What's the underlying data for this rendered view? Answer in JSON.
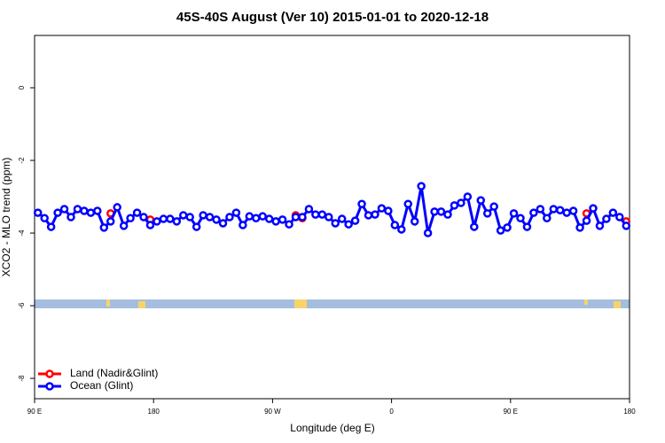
{
  "chart_data": {
    "type": "line",
    "title": "45S-40S August (Ver 10)   2015-01-01 to 2020-12-18",
    "x_label": "Longitude (deg E)",
    "y_label": "XCO2 - MLO trend (ppm)",
    "xlim": [
      90,
      540
    ],
    "xticks": [
      {
        "value": 90,
        "label": "90 E"
      },
      180,
      {
        "value": 270,
        "label": "90 W"
      },
      {
        "value": 360,
        "label": "0"
      },
      {
        "value": 450,
        "label": "90 E"
      },
      {
        "value": 540,
        "label": "180"
      }
    ],
    "ylim": [
      -8.56,
      1.44
    ],
    "yticks": [
      0,
      -2,
      -4,
      -6,
      -8
    ],
    "legend": "bottom-left",
    "series": [
      {
        "name": "Land (Nadir&Glint)",
        "color": "#ff0000",
        "x": [
          147.5,
          177.5,
          287.5,
          292.5,
          507.5,
          537.5
        ],
        "values": [
          -3.46,
          -3.63,
          -3.51,
          -3.59,
          -3.46,
          -3.68
        ]
      },
      {
        "name": "Ocean (Glint)",
        "color": "#0000ff",
        "x": [
          92.5,
          97.5,
          102.5,
          107.5,
          112.5,
          117.5,
          122.5,
          127.5,
          132.5,
          137.5,
          142.5,
          147.5,
          152.5,
          157.5,
          162.5,
          167.5,
          172.5,
          177.5,
          182.5,
          187.5,
          192.5,
          197.5,
          202.5,
          207.5,
          212.5,
          217.5,
          222.5,
          227.5,
          232.5,
          237.5,
          242.5,
          247.5,
          252.5,
          257.5,
          262.5,
          267.5,
          272.5,
          277.5,
          282.5,
          287.5,
          292.5,
          297.5,
          302.5,
          307.5,
          312.5,
          317.5,
          322.5,
          327.5,
          332.5,
          337.5,
          342.5,
          347.5,
          352.5,
          357.5,
          362.5,
          367.5,
          372.5,
          377.5,
          382.5,
          387.5,
          392.5,
          397.5,
          402.5,
          407.5,
          412.5,
          417.5,
          422.5,
          427.5,
          432.5,
          437.5,
          442.5,
          447.5,
          452.5,
          457.5,
          462.5,
          467.5,
          472.5,
          477.5,
          482.5,
          487.5,
          492.5,
          497.5,
          502.5,
          507.5,
          512.5,
          517.5,
          522.5,
          527.5,
          532.5,
          537.5
        ],
        "values": [
          -3.44,
          -3.59,
          -3.83,
          -3.44,
          -3.34,
          -3.56,
          -3.34,
          -3.39,
          -3.44,
          -3.39,
          -3.85,
          -3.68,
          -3.29,
          -3.8,
          -3.59,
          -3.44,
          -3.56,
          -3.78,
          -3.68,
          -3.61,
          -3.61,
          -3.68,
          -3.51,
          -3.56,
          -3.83,
          -3.51,
          -3.56,
          -3.63,
          -3.73,
          -3.56,
          -3.44,
          -3.78,
          -3.54,
          -3.59,
          -3.54,
          -3.61,
          -3.68,
          -3.63,
          -3.76,
          -3.56,
          -3.56,
          -3.34,
          -3.49,
          -3.49,
          -3.56,
          -3.73,
          -3.61,
          -3.76,
          -3.66,
          -3.2,
          -3.51,
          -3.49,
          -3.32,
          -3.39,
          -3.78,
          -3.9,
          -3.2,
          -3.68,
          -2.71,
          -4.0,
          -3.41,
          -3.41,
          -3.49,
          -3.24,
          -3.17,
          -3.0,
          -3.83,
          -3.1,
          -3.46,
          -3.27,
          -3.93,
          -3.85,
          -3.46,
          -3.59,
          -3.83,
          -3.44,
          -3.34,
          -3.59,
          -3.34,
          -3.37,
          -3.44,
          -3.39,
          -3.85,
          -3.66,
          -3.32,
          -3.8,
          -3.61,
          -3.44,
          -3.56,
          -3.8
        ]
      }
    ]
  }
}
